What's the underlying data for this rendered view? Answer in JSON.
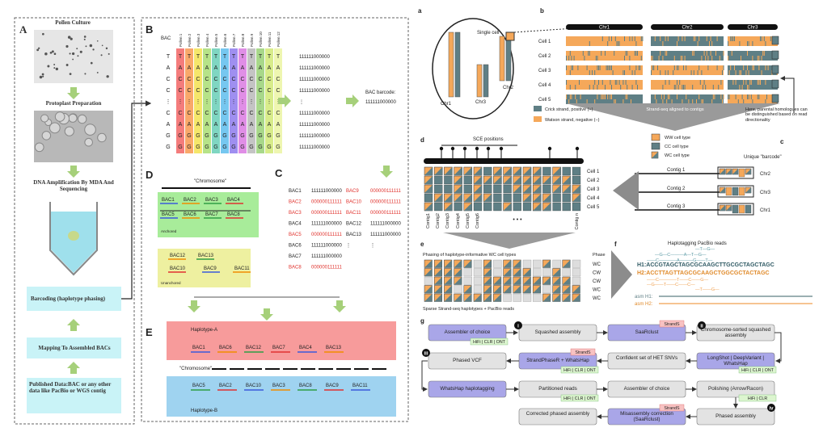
{
  "left_figure": {
    "panel_a": {
      "label": "A",
      "steps": [
        "Pollen  Culture",
        "Protoplast Preparation",
        "DNA Amplification By MDA And Sequencing",
        "Barcoding (haplotype phasing)",
        "Mapping To Assembled BACs",
        "Published Data:BAC or any other data like PacBio or WGS contig"
      ]
    },
    "panel_b": {
      "label": "B",
      "row_label": "BAC",
      "columns": [
        "Pollen 1",
        "Pollen 2",
        "Pollen 3",
        "Pollen 4",
        "Pollen 5",
        "Pollen 6",
        "Pollen 7",
        "Pollen 8",
        "Pollen 9",
        "Pollen 10",
        "Pollen 11",
        "Pollen 12"
      ],
      "bases": [
        "T",
        "A",
        "C",
        "C",
        "⋮",
        "C",
        "A",
        "G",
        "G"
      ],
      "barcodes": [
        "111111000000",
        "111111000000",
        "111111000000",
        "111111000000",
        "⋮",
        "111111000000",
        "111111000000",
        "111111000000",
        "111111000000"
      ],
      "barcode_caption": "BAC barcode:",
      "barcode_value": "111111000000"
    },
    "panel_c": {
      "label": "C",
      "rows": [
        [
          "BAC1",
          "111111000000",
          "BAC9",
          "000000111111"
        ],
        [
          "BAC2",
          "000000111111",
          "BAC10",
          "000000111111"
        ],
        [
          "BAC3",
          "000000111111",
          "BAC11",
          "000000111111"
        ],
        [
          "BAC4",
          "111111000000",
          "BAC12",
          "111111000000"
        ],
        [
          "BAC5",
          "000000111111",
          "BAC13",
          "111111000000"
        ],
        [
          "BAC6",
          "111111000000",
          "⋮",
          "⋮"
        ],
        [
          "BAC7",
          "111111000000"
        ],
        [
          "BAC8",
          "000000111111"
        ]
      ]
    },
    "panel_d": {
      "label": "D",
      "chromosome": "\"Chromosome\"",
      "anchored": [
        "BAC1",
        "BAC2",
        "BAC3",
        "BAC4",
        "BAC5",
        "BAC6",
        "BAC7",
        "BAC8"
      ],
      "anchored_label": "Anchored",
      "unanchored": [
        "BAC12",
        "BAC13",
        "BAC10",
        "BAC9",
        "BAC11"
      ],
      "unanchored_label": "Unanchored"
    },
    "panel_e": {
      "label": "E",
      "haplotype_a": "Haplotype-A",
      "a_bacs": [
        "BAC1",
        "BAC6",
        "BAC12",
        "BAC7",
        "BAC4",
        "BAC13"
      ],
      "chromosome": "\"Chromosome\"",
      "b_bacs": [
        "BAC5",
        "BAC2",
        "BAC10",
        "BAC3",
        "BAC8",
        "BAC9",
        "BAC11"
      ],
      "haplotype_b": "Haplotype-B"
    }
  },
  "right_figure": {
    "panel_a": {
      "label": "a",
      "single_cell": "Single cell",
      "chromosomes": [
        "Chr1",
        "Chr3",
        "Chr2"
      ]
    },
    "panel_b": {
      "label": "b",
      "chromosomes": [
        "Chr1",
        "Chr2",
        "Chr3"
      ],
      "cells": [
        "Cell 1",
        "Cell 2",
        "Cell 3",
        "Cell 4",
        "Cell 5"
      ],
      "legend": [
        "Crick strand, positive (+)",
        "Watson strand, negative (−)"
      ],
      "arrow_note": "Strand-seq aligned to contigs",
      "note": "Here, parental homologues can be distinguished based on read directionality"
    },
    "panel_c": {
      "label": "c",
      "legend": [
        "WW cell type",
        "CC cell type",
        "WC cell type"
      ],
      "barcode_title": "Unique \"barcode\"",
      "contigs": [
        "Contig 1",
        "Contig 2",
        "Contig 3"
      ],
      "chromosomes": [
        "Chr2",
        "Chr3",
        "Chr1"
      ]
    },
    "panel_d": {
      "label": "d",
      "title": "SCE positions",
      "cells": [
        "Cell 1",
        "Cell 2",
        "Cell 3",
        "Cell 4",
        "Cell 5"
      ],
      "contigs": [
        "Contig1",
        "Contig2",
        "Contig3",
        "Contig4",
        "Contig5",
        "Contig6",
        "Contig n"
      ],
      "ellipsis": "• • •"
    },
    "panel_e": {
      "label": "e",
      "title": "Phasing of haplotype-informative WC cell types",
      "phase_header": "Phase",
      "phases": [
        "WC",
        "CW",
        "CW",
        "WC",
        "WC"
      ],
      "caption": "Sparse Strand-seq haplotypes + PacBio reads"
    },
    "panel_f": {
      "label": "f",
      "title": "Haplotagging PacBio reads",
      "above": [
        "—T—G—",
        "—G—C———A—T—G—",
        "——C————A———G——T—"
      ],
      "h1": "H1:ACCGTAGCTAGCGCAAGCTTGCGCTAGCTAGC",
      "h2": "H2:ACCTTAGTTAGCGCAAGCTGGCGCTACTAGC",
      "below": [
        "——C————T——C——G—",
        "—G——T——C——C—",
        "—T——G—"
      ],
      "asm": [
        "asm H1:",
        "asm H2:"
      ]
    },
    "panel_g": {
      "label": "g",
      "markers": [
        "i",
        "ii",
        "iii",
        "iv"
      ],
      "nodes": [
        {
          "text": "Assembler of choice",
          "tags": [
            "HiFi | CLR | ONT"
          ]
        },
        {
          "text": "Squashed assembly"
        },
        {
          "text": "SaaRclust",
          "tags": [
            "StrandS"
          ]
        },
        {
          "text": "Chromosome-sorted squashed assembly"
        },
        {
          "text": "Phased VCF"
        },
        {
          "text": "StrandPhaseR + WhatsHap",
          "tags": [
            "StrandS",
            "HiFi | CLR | ONT"
          ]
        },
        {
          "text": "Confident set of HET SNVs"
        },
        {
          "text": "LongShot | DeepVariant | WhatsHap",
          "tags": [
            "HiFi | CLR | ONT"
          ]
        },
        {
          "text": "WhatsHap haplotagging"
        },
        {
          "text": "Partitioned reads",
          "tags": [
            "HiFi | CLR | ONT"
          ]
        },
        {
          "text": "Assembler of choice"
        },
        {
          "text": "Polishing (Arrow/Racon)",
          "tags": [
            "HiFi | CLR"
          ]
        },
        {
          "text": "Corrected phased assembly"
        },
        {
          "text": "Misassembly correction (SaaRclust)",
          "tags": [
            "StrandS"
          ]
        },
        {
          "text": "Phased assembly"
        }
      ]
    }
  }
}
